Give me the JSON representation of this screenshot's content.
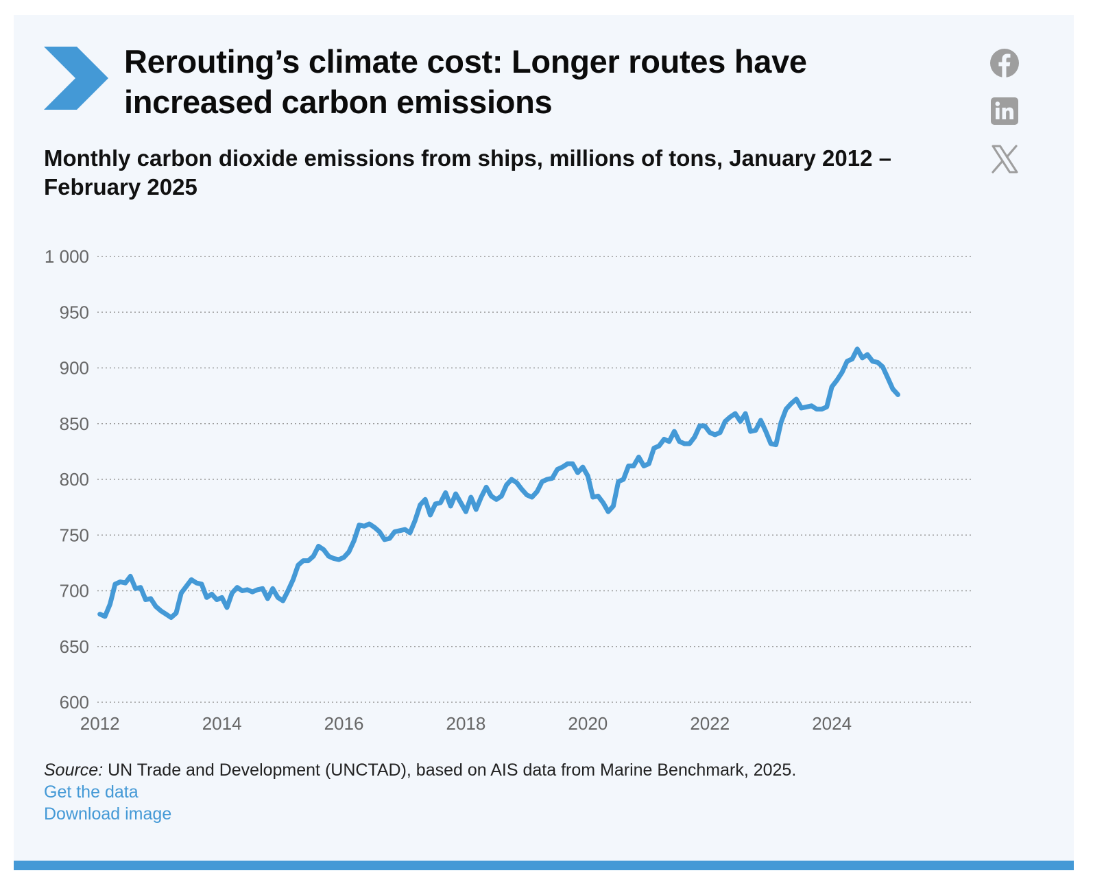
{
  "header": {
    "title": "Rerouting’s climate cost: Longer routes have increased carbon emissions",
    "subtitle": "Monthly carbon dioxide emissions from ships, millions of tons, January 2012 – February 2025"
  },
  "social": {
    "facebook_icon": "facebook-icon",
    "linkedin_icon": "linkedin-icon",
    "x_icon": "x-icon"
  },
  "colors": {
    "accent": "#4499d6",
    "background": "#f3f7fc",
    "grid": "#9a9a9a",
    "tick_text": "#666666",
    "social_icon": "#9e9e9e"
  },
  "footer": {
    "source_label": "Source:",
    "source_text": " UN Trade and Development (UNCTAD), based on AIS data from Marine Benchmark, 2025.",
    "get_data_link": "Get the data",
    "download_link": "Download image"
  },
  "chart_data": {
    "type": "line",
    "title": "Monthly carbon dioxide emissions from ships, millions of tons, January 2012 – February 2025",
    "xlabel": "",
    "ylabel": "",
    "ylim": [
      600,
      1000
    ],
    "xlim": [
      "2012-01",
      "2025-02"
    ],
    "y_ticks": [
      600,
      650,
      700,
      750,
      800,
      850,
      900,
      950,
      1000
    ],
    "y_tick_labels": [
      "600",
      "650",
      "700",
      "750",
      "800",
      "850",
      "900",
      "950",
      "1 000"
    ],
    "x_ticks": [
      "2012",
      "2014",
      "2016",
      "2018",
      "2020",
      "2022",
      "2024"
    ],
    "grid": true,
    "legend": "none",
    "series": [
      {
        "color": "#4499d6",
        "x": [
          "2012-01",
          "2012-02",
          "2012-03",
          "2012-04",
          "2012-05",
          "2012-06",
          "2012-07",
          "2012-08",
          "2012-09",
          "2012-10",
          "2012-11",
          "2012-12",
          "2013-01",
          "2013-02",
          "2013-03",
          "2013-04",
          "2013-05",
          "2013-06",
          "2013-07",
          "2013-08",
          "2013-09",
          "2013-10",
          "2013-11",
          "2013-12",
          "2014-01",
          "2014-02",
          "2014-03",
          "2014-04",
          "2014-05",
          "2014-06",
          "2014-07",
          "2014-08",
          "2014-09",
          "2014-10",
          "2014-11",
          "2014-12",
          "2015-01",
          "2015-02",
          "2015-03",
          "2015-04",
          "2015-05",
          "2015-06",
          "2015-07",
          "2015-08",
          "2015-09",
          "2015-10",
          "2015-11",
          "2015-12",
          "2016-01",
          "2016-02",
          "2016-03",
          "2016-04",
          "2016-05",
          "2016-06",
          "2016-07",
          "2016-08",
          "2016-09",
          "2016-10",
          "2016-11",
          "2016-12",
          "2017-01",
          "2017-02",
          "2017-03",
          "2017-04",
          "2017-05",
          "2017-06",
          "2017-07",
          "2017-08",
          "2017-09",
          "2017-10",
          "2017-11",
          "2017-12",
          "2018-01",
          "2018-02",
          "2018-03",
          "2018-04",
          "2018-05",
          "2018-06",
          "2018-07",
          "2018-08",
          "2018-09",
          "2018-10",
          "2018-11",
          "2018-12",
          "2019-01",
          "2019-02",
          "2019-03",
          "2019-04",
          "2019-05",
          "2019-06",
          "2019-07",
          "2019-08",
          "2019-09",
          "2019-10",
          "2019-11",
          "2019-12",
          "2020-01",
          "2020-02",
          "2020-03",
          "2020-04",
          "2020-05",
          "2020-06",
          "2020-07",
          "2020-08",
          "2020-09",
          "2020-10",
          "2020-11",
          "2020-12",
          "2021-01",
          "2021-02",
          "2021-03",
          "2021-04",
          "2021-05",
          "2021-06",
          "2021-07",
          "2021-08",
          "2021-09",
          "2021-10",
          "2021-11",
          "2021-12",
          "2022-01",
          "2022-02",
          "2022-03",
          "2022-04",
          "2022-05",
          "2022-06",
          "2022-07",
          "2022-08",
          "2022-09",
          "2022-10",
          "2022-11",
          "2022-12",
          "2023-01",
          "2023-02",
          "2023-03",
          "2023-04",
          "2023-05",
          "2023-06",
          "2023-07",
          "2023-08",
          "2023-09",
          "2023-10",
          "2023-11",
          "2023-12",
          "2024-01",
          "2024-02",
          "2024-03",
          "2024-04",
          "2024-05",
          "2024-06",
          "2024-07",
          "2024-08",
          "2024-09",
          "2024-10",
          "2024-11",
          "2024-12",
          "2025-01",
          "2025-02"
        ],
        "values": [
          679,
          677,
          688,
          706,
          708,
          707,
          713,
          702,
          703,
          692,
          693,
          686,
          682,
          679,
          676,
          680,
          698,
          704,
          710,
          707,
          706,
          694,
          697,
          692,
          694,
          685,
          698,
          703,
          700,
          701,
          699,
          701,
          702,
          693,
          702,
          694,
          691,
          700,
          710,
          723,
          727,
          727,
          731,
          740,
          737,
          731,
          729,
          728,
          730,
          735,
          745,
          759,
          758,
          760,
          757,
          753,
          746,
          747,
          753,
          754,
          755,
          752,
          763,
          777,
          782,
          768,
          778,
          779,
          788,
          776,
          787,
          779,
          771,
          784,
          773,
          784,
          793,
          785,
          782,
          785,
          795,
          800,
          797,
          791,
          786,
          784,
          789,
          798,
          800,
          801,
          809,
          811,
          814,
          814,
          806,
          811,
          803,
          784,
          785,
          779,
          771,
          776,
          798,
          800,
          812,
          812,
          820,
          812,
          814,
          828,
          830,
          836,
          834,
          843,
          834,
          832,
          832,
          838,
          848,
          848,
          842,
          840,
          842,
          852,
          856,
          859,
          852,
          859,
          843,
          844,
          853,
          843,
          832,
          831,
          851,
          863,
          868,
          872,
          864,
          865,
          866,
          863,
          863,
          865,
          883,
          889,
          896,
          906,
          908,
          917,
          909,
          912,
          906,
          905,
          901,
          891,
          881,
          876
        ]
      }
    ]
  }
}
